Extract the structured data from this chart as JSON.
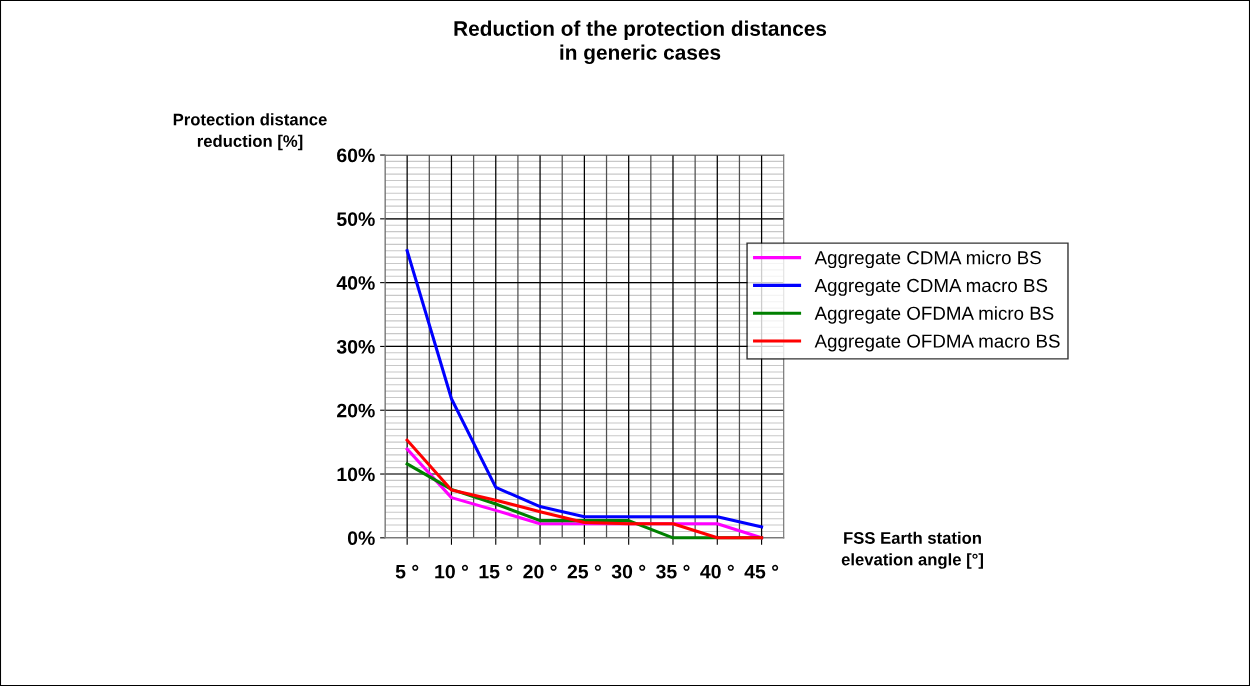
{
  "chart_data": {
    "type": "line",
    "title": "Reduction of the protection distances\nin generic cases",
    "ylabel": "Protection distance\nreduction [%]",
    "xlabel": "FSS Earth station\nelevation angle [°]",
    "categories": [
      "5 °",
      "10 °",
      "15 °",
      "20 °",
      "25 °",
      "30 °",
      "35 °",
      "40 °",
      "45 °"
    ],
    "series": [
      {
        "name": "Aggregate CDMA micro BS",
        "color": "#ff00ff",
        "values": [
          13.9,
          6.3,
          4.3,
          2.2,
          2.2,
          2.2,
          2.2,
          2.2,
          0
        ]
      },
      {
        "name": "Aggregate CDMA macro BS",
        "color": "#0000ff",
        "values": [
          45,
          21.8,
          7.9,
          4.9,
          3.3,
          3.3,
          3.3,
          3.3,
          1.7
        ]
      },
      {
        "name": "Aggregate OFDMA micro BS",
        "color": "#008000",
        "values": [
          11.6,
          7.6,
          5.3,
          2.7,
          2.7,
          2.7,
          0,
          0,
          0
        ]
      },
      {
        "name": "Aggregate OFDMA macro BS",
        "color": "#ff0000",
        "values": [
          15.3,
          7.5,
          5.9,
          4.1,
          2.4,
          2.2,
          2.2,
          0,
          0
        ]
      }
    ],
    "ylim": [
      0,
      60
    ],
    "yticks": [
      {
        "value": 0,
        "label": "0%"
      },
      {
        "value": 10,
        "label": "10%"
      },
      {
        "value": 20,
        "label": "20%"
      },
      {
        "value": 30,
        "label": "30%"
      },
      {
        "value": 40,
        "label": "40%"
      },
      {
        "value": 50,
        "label": "50%"
      },
      {
        "value": 60,
        "label": "60%"
      }
    ],
    "grid": true,
    "legend": "right",
    "marker": "none",
    "line_style": "solid"
  }
}
